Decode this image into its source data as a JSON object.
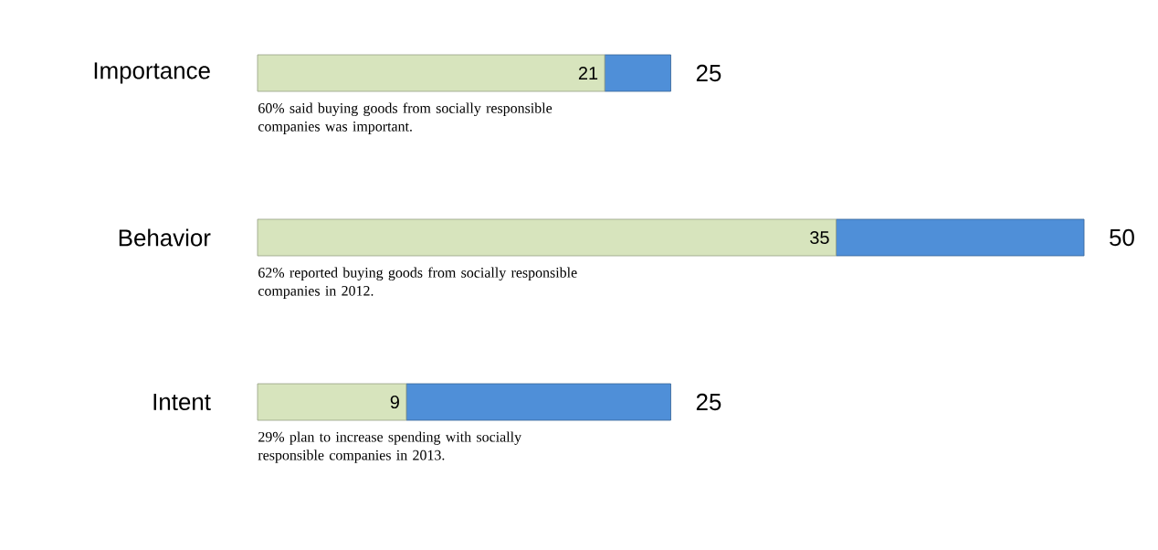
{
  "chart_data": {
    "type": "bar",
    "orientation": "horizontal",
    "stacked": true,
    "categories": [
      "Importance",
      "Behavior",
      "Intent"
    ],
    "series": [
      {
        "color": "#d7e4bd",
        "values": [
          21,
          35,
          9
        ],
        "value_labels": [
          "21",
          "35",
          "9"
        ]
      },
      {
        "color": "#4f8fd8",
        "values": [
          4,
          15,
          16
        ]
      }
    ],
    "totals": [
      "25",
      "50",
      "25"
    ],
    "tick_labels": "y",
    "annotations": [
      "60% said buying goods from socially responsible companies was important.",
      "62% reported buying goods from socially responsible companies in 2012.",
      "29% plan to increase spending with socially responsible companies in 2013."
    ]
  }
}
